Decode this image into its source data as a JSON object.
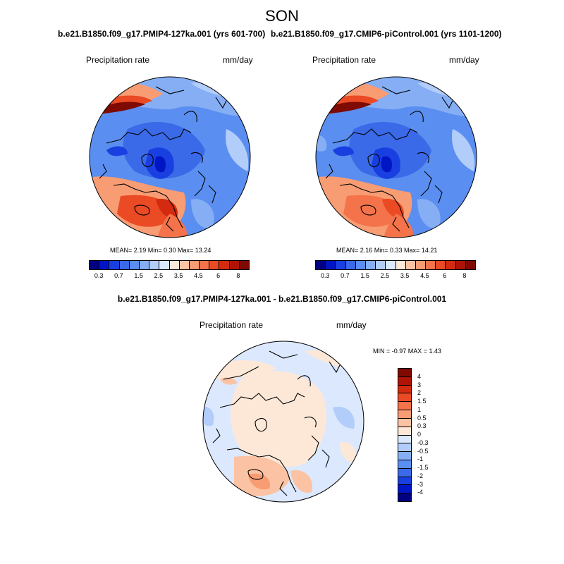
{
  "season": "SON",
  "panels": {
    "left": {
      "run": "b.e21.B1850.f09_g17.PMIP4-127ka.001 (yrs 601-700)",
      "variable": "Precipitation rate",
      "units": "mm/day",
      "stats": "MEAN=   2.19  Min=   0.30  Max=  13.24"
    },
    "right": {
      "run": "b.e21.B1850.f09_g17.CMIP6-piControl.001 (yrs 1101-1200)",
      "variable": "Precipitation rate",
      "units": "mm/day",
      "stats": "MEAN=   2.16  Min=   0.33  Max=  14.21"
    },
    "diff": {
      "run": "b.e21.B1850.f09_g17.PMIP4-127ka.001 - b.e21.B1850.f09_g17.CMIP6-piControl.001",
      "variable": "Precipitation rate",
      "units": "mm/day",
      "stats": "MIN =  -0.97 MAX =   1.43"
    }
  },
  "colorbar_abs": {
    "levels": [
      "0.3",
      "0.7",
      "1.5",
      "2.5",
      "3.5",
      "4.5",
      "6",
      "8"
    ],
    "colors": [
      "#000080",
      "#0016c4",
      "#1a3fe0",
      "#3a6ae8",
      "#5a8ef0",
      "#85aef5",
      "#b2cdf9",
      "#dbe8fd",
      "#fde8d8",
      "#fbc3a3",
      "#f89c74",
      "#f4734a",
      "#ea4a24",
      "#d42a10",
      "#ad1405",
      "#7e0a02"
    ]
  },
  "colorbar_diff": {
    "levels": [
      "4",
      "3",
      "2",
      "1.5",
      "1",
      "0.5",
      "0.3",
      "0",
      "-0.3",
      "-0.5",
      "-1",
      "-1.5",
      "-2",
      "-3",
      "-4"
    ],
    "colors": [
      "#7e0a02",
      "#ad1405",
      "#d42a10",
      "#ea4a24",
      "#f4734a",
      "#f89c74",
      "#fbc3a3",
      "#fde8d8",
      "#dbe8fd",
      "#b2cdf9",
      "#85aef5",
      "#5a8ef0",
      "#3a6ae8",
      "#1a3fe0",
      "#0016c4",
      "#000080"
    ]
  }
}
